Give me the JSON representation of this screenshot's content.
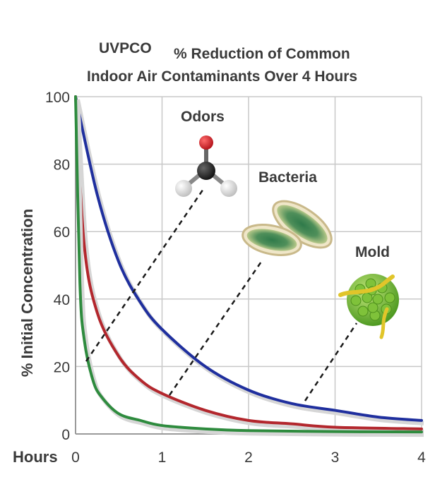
{
  "chart_data": {
    "type": "line",
    "brand_label": "UVPCO",
    "title_line1": "% Reduction of Common",
    "title_line2": "Indoor Air Contaminants Over 4 Hours",
    "xlabel": "Hours",
    "ylabel": "% Initial Concentration",
    "xlim": [
      0,
      4
    ],
    "ylim": [
      0,
      100
    ],
    "xticks": [
      "0",
      "1",
      "2",
      "3",
      "4"
    ],
    "yticks": [
      "0",
      "20",
      "40",
      "60",
      "80",
      "100"
    ],
    "grid": true,
    "series": [
      {
        "color": "#1f2f9e",
        "x": [
          0,
          0.25,
          0.5,
          0.75,
          1,
          1.5,
          2,
          2.5,
          3,
          3.5,
          4
        ],
        "y": [
          100,
          71,
          51,
          39,
          31,
          20,
          13,
          9,
          7,
          5,
          4
        ]
      },
      {
        "color": "#b3272d",
        "x": [
          0,
          0.1,
          0.25,
          0.5,
          0.75,
          1,
          1.5,
          2,
          2.5,
          3,
          4
        ],
        "y": [
          100,
          56,
          36,
          23,
          16,
          12,
          7,
          4,
          3,
          2,
          1.5
        ]
      },
      {
        "color": "#2e8b3e",
        "x": [
          0,
          0.05,
          0.1,
          0.2,
          0.3,
          0.5,
          0.75,
          1,
          1.5,
          2,
          3,
          4
        ],
        "y": [
          100,
          45,
          28,
          16,
          11,
          6,
          4,
          2.5,
          1.5,
          1,
          0.7,
          0.6
        ]
      }
    ],
    "annotations": [
      {
        "label": "Odors",
        "icon": "molecule-icon"
      },
      {
        "label": "Bacteria",
        "icon": "bacteria-icon"
      },
      {
        "label": "Mold",
        "icon": "mold-spore-icon"
      }
    ]
  }
}
